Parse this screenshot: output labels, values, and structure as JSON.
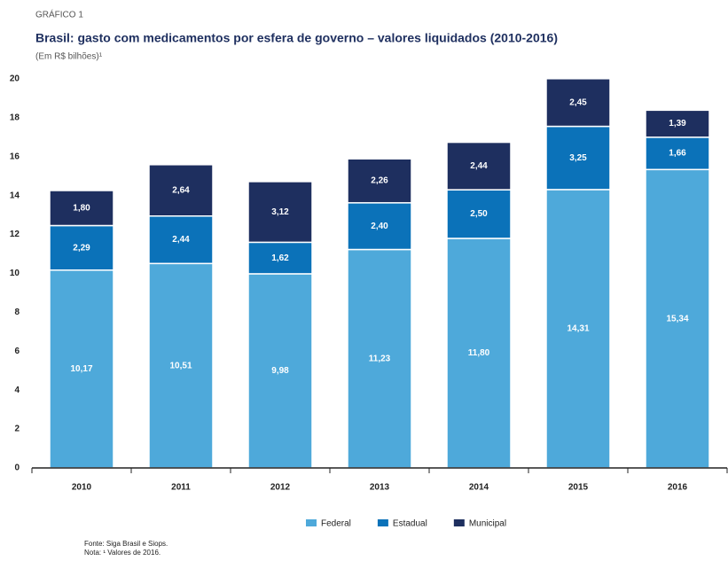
{
  "chart_data": {
    "type": "stacked_bar",
    "kicker": "GRÁFICO 1",
    "title": "Brasil: gasto com medicamentos por esfera de governo – valores liquidados (2010-2016)",
    "subtitle": "(Em R$ bilhões)¹",
    "categories": [
      "2010",
      "2011",
      "2012",
      "2013",
      "2014",
      "2015",
      "2016"
    ],
    "series": [
      {
        "name": "Federal",
        "color": "#4ea9da",
        "values": [
          10.17,
          10.51,
          9.98,
          11.23,
          11.8,
          14.31,
          15.34
        ],
        "value_labels": [
          "10,17",
          "10,51",
          "9,98",
          "11,23",
          "11,80",
          "14,31",
          "15,34"
        ]
      },
      {
        "name": "Estadual",
        "color": "#0b72b9",
        "values": [
          2.29,
          2.44,
          1.62,
          2.4,
          2.5,
          3.25,
          1.66
        ],
        "value_labels": [
          "2,29",
          "2,44",
          "1,62",
          "2,40",
          "2,50",
          "3,25",
          "1,66"
        ]
      },
      {
        "name": "Municipal",
        "color": "#1e2f5f",
        "values": [
          1.8,
          2.64,
          3.12,
          2.26,
          2.44,
          2.45,
          1.39
        ],
        "value_labels": [
          "1,80",
          "2,64",
          "3,12",
          "2,26",
          "2,44",
          "2,45",
          "1,39"
        ]
      }
    ],
    "ylim": [
      0,
      20
    ],
    "yticks": [
      0,
      2,
      4,
      6,
      8,
      10,
      12,
      14,
      16,
      18,
      20
    ],
    "grid": false,
    "legend": "bottom",
    "source": "Fonte: Siga Brasil e Siops.",
    "note": "Nota: ¹ Valores de 2016."
  }
}
